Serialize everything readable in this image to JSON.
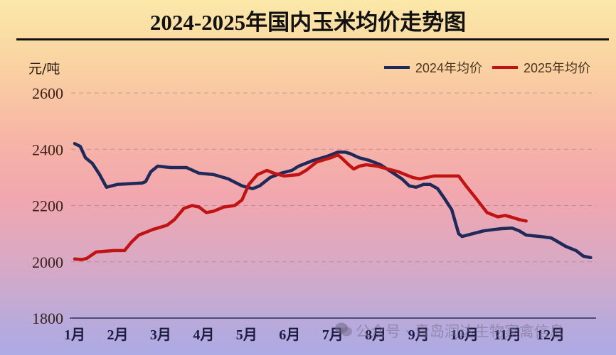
{
  "title": "2024-2025年国内玉米均价走势图",
  "unit_label": "元/吨",
  "legend": [
    {
      "label": "2024年均价",
      "color": "#1f2a5a"
    },
    {
      "label": "2025年均价",
      "color": "#c01414"
    }
  ],
  "watermark": "公众号 · 青岛润达生物家禽信息",
  "chart_data": {
    "type": "line",
    "title": "2024-2025年国内玉米均价走势图",
    "xlabel": "",
    "ylabel": "元/吨",
    "ylim": [
      1800,
      2600
    ],
    "yticks": [
      1800,
      2000,
      2200,
      2400,
      2600
    ],
    "categories": [
      "1月",
      "2月",
      "3月",
      "4月",
      "5月",
      "6月",
      "7月",
      "8月",
      "9月",
      "10月",
      "11月",
      "12月"
    ],
    "grid": "horizontal dashed",
    "legend_position": "top-right",
    "x_unit": "month position (1.0 = start of 1月)",
    "series": [
      {
        "name": "2024年均价",
        "color": "#1f2a5a",
        "points": [
          [
            1.0,
            2420
          ],
          [
            1.13,
            2410
          ],
          [
            1.25,
            2370
          ],
          [
            1.41,
            2350
          ],
          [
            1.58,
            2310
          ],
          [
            1.74,
            2265
          ],
          [
            1.99,
            2275
          ],
          [
            2.57,
            2280
          ],
          [
            2.65,
            2285
          ],
          [
            2.77,
            2320
          ],
          [
            2.93,
            2340
          ],
          [
            3.23,
            2335
          ],
          [
            3.6,
            2335
          ],
          [
            3.89,
            2315
          ],
          [
            4.23,
            2310
          ],
          [
            4.57,
            2295
          ],
          [
            4.89,
            2270
          ],
          [
            5.14,
            2260
          ],
          [
            5.3,
            2270
          ],
          [
            5.55,
            2300
          ],
          [
            5.8,
            2315
          ],
          [
            6.05,
            2325
          ],
          [
            6.21,
            2340
          ],
          [
            6.54,
            2360
          ],
          [
            6.87,
            2375
          ],
          [
            7.12,
            2390
          ],
          [
            7.28,
            2390
          ],
          [
            7.4,
            2385
          ],
          [
            7.61,
            2370
          ],
          [
            7.86,
            2360
          ],
          [
            8.11,
            2345
          ],
          [
            8.36,
            2320
          ],
          [
            8.61,
            2295
          ],
          [
            8.78,
            2270
          ],
          [
            8.94,
            2265
          ],
          [
            9.11,
            2275
          ],
          [
            9.27,
            2275
          ],
          [
            9.44,
            2260
          ],
          [
            9.6,
            2225
          ],
          [
            9.77,
            2185
          ],
          [
            9.93,
            2100
          ],
          [
            10.01,
            2090
          ],
          [
            10.26,
            2100
          ],
          [
            10.51,
            2110
          ],
          [
            10.76,
            2115
          ],
          [
            10.93,
            2118
          ],
          [
            11.17,
            2120
          ],
          [
            11.34,
            2110
          ],
          [
            11.5,
            2095
          ],
          [
            11.83,
            2090
          ],
          [
            12.08,
            2085
          ],
          [
            12.25,
            2070
          ],
          [
            12.42,
            2055
          ],
          [
            12.66,
            2040
          ],
          [
            12.83,
            2020
          ],
          [
            13.0,
            2015
          ]
        ]
      },
      {
        "name": "2025年均价",
        "color": "#c01414",
        "points": [
          [
            1.0,
            2010
          ],
          [
            1.17,
            2008
          ],
          [
            1.28,
            2012
          ],
          [
            1.5,
            2035
          ],
          [
            1.91,
            2040
          ],
          [
            2.16,
            2040
          ],
          [
            2.32,
            2070
          ],
          [
            2.49,
            2095
          ],
          [
            2.82,
            2115
          ],
          [
            3.15,
            2130
          ],
          [
            3.32,
            2150
          ],
          [
            3.54,
            2190
          ],
          [
            3.73,
            2200
          ],
          [
            3.89,
            2195
          ],
          [
            4.06,
            2175
          ],
          [
            4.23,
            2180
          ],
          [
            4.47,
            2195
          ],
          [
            4.72,
            2200
          ],
          [
            4.89,
            2220
          ],
          [
            5.05,
            2275
          ],
          [
            5.25,
            2310
          ],
          [
            5.47,
            2325
          ],
          [
            5.63,
            2315
          ],
          [
            5.88,
            2305
          ],
          [
            6.21,
            2310
          ],
          [
            6.38,
            2325
          ],
          [
            6.63,
            2355
          ],
          [
            6.96,
            2370
          ],
          [
            7.12,
            2380
          ],
          [
            7.2,
            2370
          ],
          [
            7.37,
            2345
          ],
          [
            7.49,
            2330
          ],
          [
            7.62,
            2340
          ],
          [
            7.78,
            2345
          ],
          [
            8.03,
            2340
          ],
          [
            8.28,
            2330
          ],
          [
            8.53,
            2320
          ],
          [
            8.69,
            2310
          ],
          [
            8.86,
            2300
          ],
          [
            9.02,
            2295
          ],
          [
            9.19,
            2300
          ],
          [
            9.35,
            2305
          ],
          [
            9.93,
            2305
          ],
          [
            10.1,
            2270
          ],
          [
            10.31,
            2230
          ],
          [
            10.59,
            2175
          ],
          [
            10.84,
            2160
          ],
          [
            11.01,
            2165
          ],
          [
            11.17,
            2158
          ],
          [
            11.34,
            2150
          ],
          [
            11.5,
            2145
          ]
        ]
      }
    ]
  }
}
